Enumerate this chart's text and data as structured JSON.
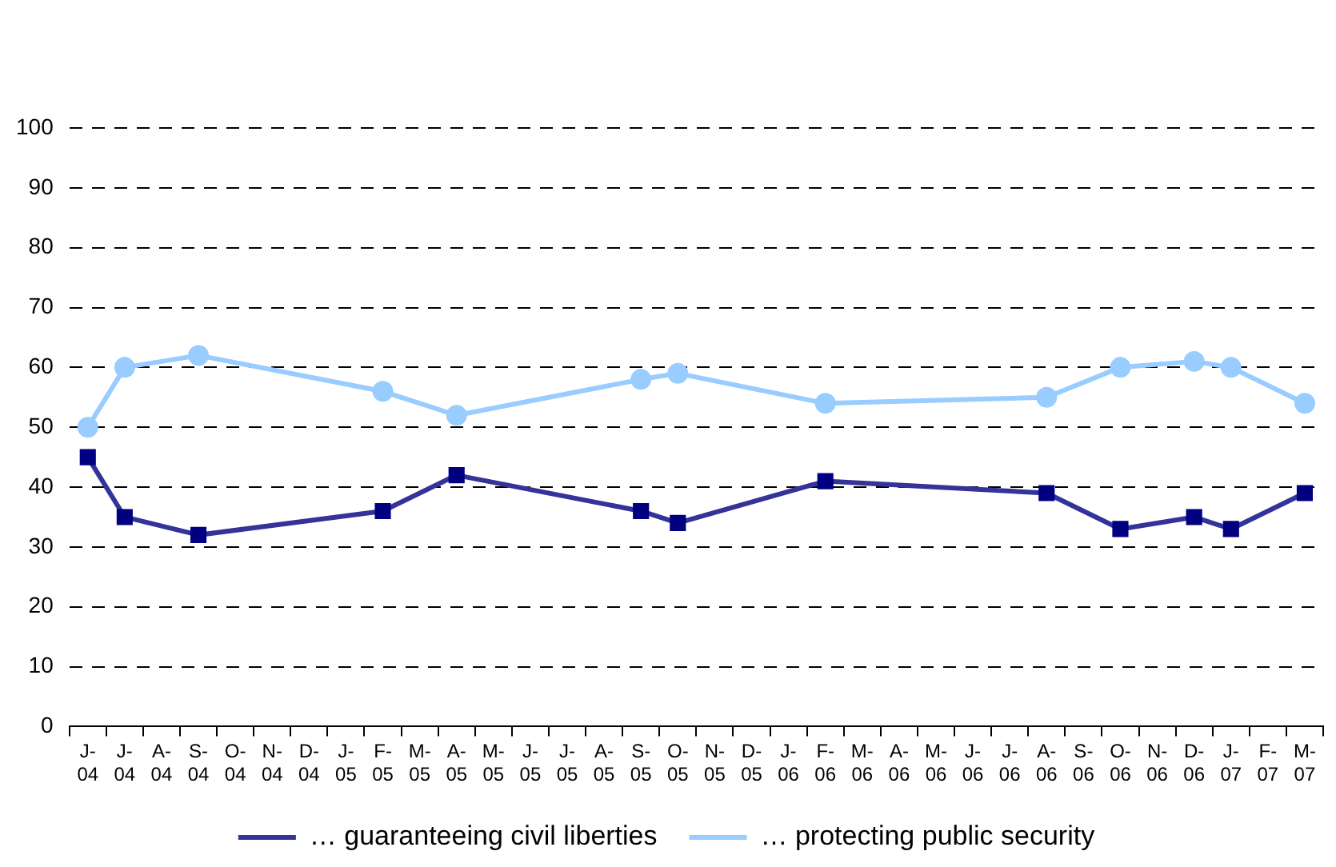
{
  "chart_data": {
    "type": "line",
    "categories": [
      "J-\n04",
      "J-\n04",
      "A-\n04",
      "S-\n04",
      "O-\n04",
      "N-\n04",
      "D-\n04",
      "J-\n05",
      "F-\n05",
      "M-\n05",
      "A-\n05",
      "M-\n05",
      "J-\n05",
      "J-\n05",
      "A-\n05",
      "S-\n05",
      "O-\n05",
      "N-\n05",
      "D-\n05",
      "J-\n06",
      "F-\n06",
      "M-\n06",
      "A-\n06",
      "M-\n06",
      "J-\n06",
      "J-\n06",
      "A-\n06",
      "S-\n06",
      "O-\n06",
      "N-\n06",
      "D-\n06",
      "J-\n07",
      "F-\n07",
      "M-\n07"
    ],
    "series": [
      {
        "name": "… guaranteeing civil liberties",
        "color": "#000080",
        "marker": "square",
        "values": [
          45,
          35,
          null,
          32,
          null,
          null,
          null,
          null,
          36,
          null,
          42,
          null,
          null,
          null,
          null,
          36,
          34,
          null,
          null,
          null,
          41,
          null,
          null,
          null,
          null,
          null,
          39,
          null,
          33,
          null,
          35,
          33,
          null,
          39
        ]
      },
      {
        "name": "… protecting public security",
        "color": "#99ccff",
        "marker": "circle",
        "values": [
          50,
          60,
          null,
          62,
          null,
          null,
          null,
          null,
          56,
          null,
          52,
          null,
          null,
          null,
          null,
          58,
          59,
          null,
          null,
          null,
          54,
          null,
          null,
          null,
          null,
          null,
          55,
          null,
          60,
          null,
          61,
          60,
          null,
          54
        ]
      }
    ],
    "ylim": [
      0,
      100
    ],
    "yticks": [
      0,
      10,
      20,
      30,
      40,
      50,
      60,
      70,
      80,
      90,
      100
    ],
    "grid": "y",
    "line_style": "solid",
    "legend": "bottom"
  }
}
